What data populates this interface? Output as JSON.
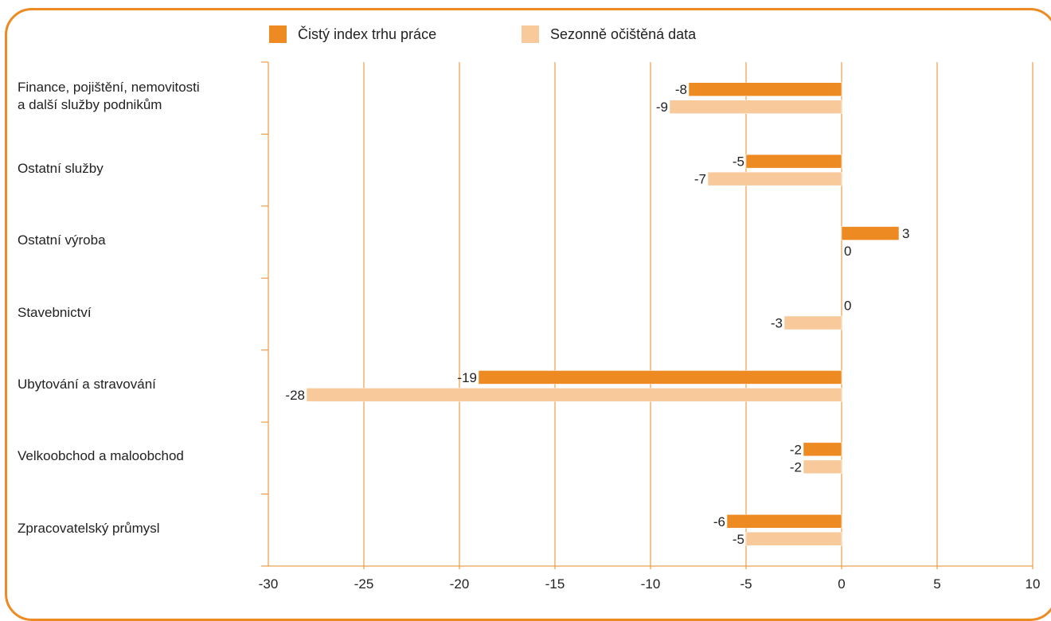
{
  "chart_data": {
    "type": "bar",
    "orientation": "horizontal",
    "categories": [
      "Finance, pojištění, nemovitosti|a další služby podnikům",
      "Ostatní služby",
      "Ostatní výroba",
      "Stavebnictví",
      "Ubytování a stravování",
      "Velkoobchod a maloobchod",
      "Zpracovatelský průmysl"
    ],
    "series": [
      {
        "name": "Čistý index trhu práce",
        "color": "#ee8a22",
        "values": [
          -8,
          -5,
          3,
          0,
          -19,
          -2,
          -6
        ],
        "labels": [
          "-8",
          "-5",
          "3",
          "0",
          "-19",
          "-2",
          "-6"
        ]
      },
      {
        "name": "Sezonně očištěná data",
        "color": "#f8c99a",
        "values": [
          -9,
          -7,
          0,
          -3,
          -28,
          -2,
          -5
        ],
        "labels": [
          "-9",
          "-7",
          "0",
          "-3",
          "-28",
          "-2",
          "-5"
        ]
      }
    ],
    "xlim": [
      -30,
      10
    ],
    "xticks": [
      "-30",
      "-25",
      "-20",
      "-15",
      "-10",
      "-5",
      "0",
      "5",
      "10"
    ],
    "grid": "vertical",
    "legend": "top",
    "title": "",
    "xlabel": "",
    "ylabel": ""
  },
  "colors": {
    "frame": "#ee8a22",
    "axis": "#ee8a22",
    "text": "#222222"
  }
}
